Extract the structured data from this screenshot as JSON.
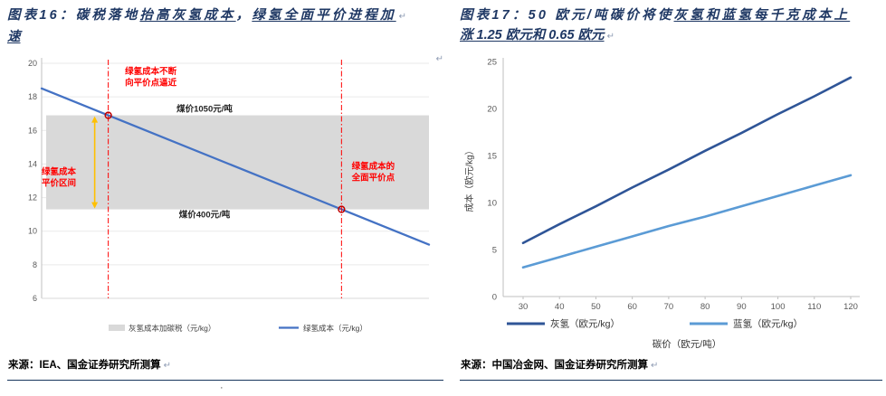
{
  "chart_data": [
    {
      "type": "line",
      "id": "left",
      "title": "碳税落地抬高灰氢成本，绿氢全面平价进程加速",
      "ylim": [
        6,
        20
      ],
      "yticks": [
        6,
        8,
        10,
        12,
        14,
        16,
        18,
        20
      ],
      "grid": true,
      "series": [
        {
          "name": "绿氢成本（元/kg）",
          "color": "#4472c4",
          "x_frac": [
            0,
            1
          ],
          "values": [
            18.5,
            9.2
          ]
        }
      ],
      "band": {
        "name": "灰氢成本加碳税（元/kg）",
        "color": "#d9d9d9",
        "low": 11.3,
        "high": 16.9,
        "top_label": "煤价1050元/吨",
        "bottom_label": "煤价400元/吨"
      },
      "parity_points": [
        {
          "value": 16.9,
          "label_lines": [
            "绿氢成本不断",
            "向平价点逼近"
          ]
        },
        {
          "value": 11.3,
          "label_lines": [
            "绿氢成本的",
            "全面平价点"
          ]
        }
      ],
      "interval_label_lines": [
        "绿氢成本",
        "平价区间"
      ],
      "annotation_color": "#ff0000",
      "marker_color": "#c00000",
      "arrow_color": "#ffc000",
      "legend": [
        {
          "label": "灰氢成本加碳税（元/kg）",
          "swatch": "band",
          "color": "#d9d9d9"
        },
        {
          "label": "绿氢成本（元/kg）",
          "swatch": "line",
          "color": "#4472c4"
        }
      ]
    },
    {
      "type": "line",
      "id": "right",
      "title": "50 欧元/吨碳价将使灰氢和蓝氢每千克成本上涨 1.25 欧元和 0.65 欧元",
      "xlabel": "碳价（欧元/吨）",
      "ylabel": "成本（欧元/kg）",
      "x": [
        30,
        40,
        50,
        60,
        70,
        80,
        90,
        100,
        110,
        120
      ],
      "ylim": [
        0,
        25
      ],
      "yticks": [
        0,
        5,
        10,
        15,
        20,
        25
      ],
      "grid": false,
      "legend_position": "bottom",
      "series": [
        {
          "name": "灰氢（欧元/kg）",
          "color": "#2f5597",
          "values": [
            5.7,
            7.7,
            9.6,
            11.6,
            13.5,
            15.5,
            17.4,
            19.4,
            21.3,
            23.3
          ]
        },
        {
          "name": "蓝氢（欧元/kg）",
          "color": "#5b9bd5",
          "values": [
            3.1,
            4.2,
            5.3,
            6.4,
            7.5,
            8.5,
            9.6,
            10.7,
            11.8,
            12.9
          ]
        }
      ],
      "legend": [
        {
          "label": "灰氢（欧元/kg）",
          "swatch": "line",
          "color": "#2f5597"
        },
        {
          "label": "蓝氢（欧元/kg）",
          "swatch": "line",
          "color": "#5b9bd5"
        }
      ]
    }
  ],
  "left": {
    "title_lines": [
      [
        {
          "t": "图表16：碳税落地",
          "u": 0
        },
        {
          "t": "抬高灰氢成本",
          "u": 1
        },
        {
          "t": "，",
          "u": 0
        },
        {
          "t": "绿氢全面平价进程加",
          "u": 1
        },
        {
          "t": "↵",
          "mark": 1
        }
      ],
      [
        {
          "t": "速",
          "u": 1
        }
      ]
    ],
    "chart_mark": "↵",
    "source": "来源：IEA、国金证券研究所测算",
    "source_mark": "↵"
  },
  "right": {
    "title_lines": [
      [
        {
          "t": "图表17：50 欧元/吨碳价将使",
          "u": 0
        },
        {
          "t": "灰氢和蓝氢每千克成本上",
          "u": 1
        }
      ],
      [
        {
          "t": "涨 1.25 欧元和 0.65 欧元",
          "u": 1
        },
        {
          "t": "↵",
          "mark": 1
        }
      ]
    ],
    "source": "来源：中国冶金网、国金证券研究所测算",
    "source_mark": "↵"
  },
  "footer_dot": "·"
}
